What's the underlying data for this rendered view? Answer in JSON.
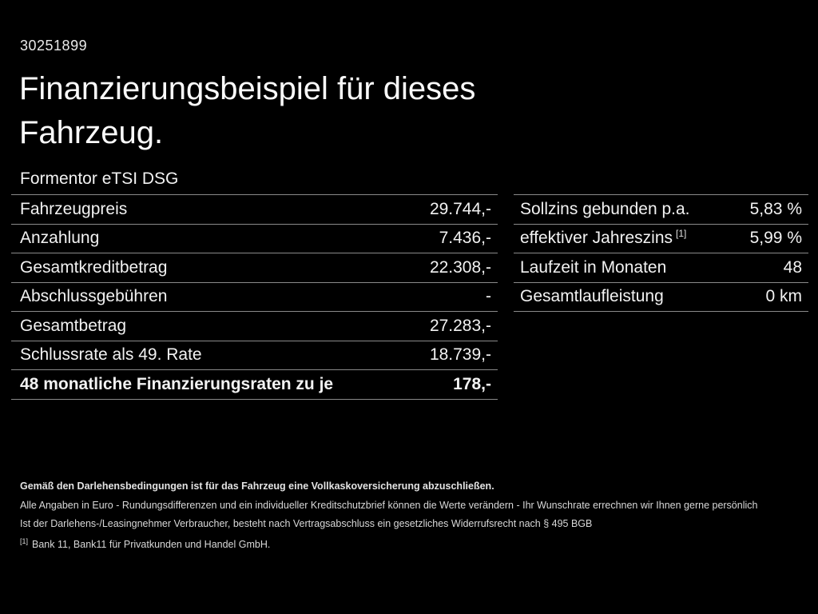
{
  "colors": {
    "background": "#000000",
    "text": "#f2f2f2",
    "divider": "#8a8a8a"
  },
  "header": {
    "id_number": "30251899",
    "title_line1": "Finanzierungsbeispiel für dieses",
    "title_line2": "Fahrzeug.",
    "model": "Formentor eTSI DSG"
  },
  "left_table": {
    "rows": [
      {
        "label": "Fahrzeugpreis",
        "value": "29.744,-"
      },
      {
        "label": "Anzahlung",
        "value": "7.436,-"
      },
      {
        "label": "Gesamtkreditbetrag",
        "value": "22.308,-"
      },
      {
        "label": "Abschlussgebühren",
        "value": "-"
      },
      {
        "label": "Gesamtbetrag",
        "value": "27.283,-"
      },
      {
        "label": "Schlussrate als 49. Rate",
        "value": "18.739,-"
      },
      {
        "label": "48 monatliche Finanzierungsraten zu je",
        "value": "178,-"
      }
    ]
  },
  "right_table": {
    "rows": [
      {
        "label": "Sollzins gebunden p.a.",
        "sup": "",
        "value": "5,83 %"
      },
      {
        "label": "effektiver Jahreszins",
        "sup": "[1]",
        "value": "5,99 %"
      },
      {
        "label": "Laufzeit in Monaten",
        "sup": "",
        "value": "48"
      },
      {
        "label": "Gesamtlaufleistung",
        "sup": "",
        "value": "0 km"
      }
    ]
  },
  "footer": {
    "line1_bold": "Gemäß den Darlehensbedingungen ist für das Fahrzeug eine Vollkaskoversicherung abzuschließen.",
    "line2": "Alle Angaben in Euro - Rundungsdifferenzen und ein individueller Kreditschutzbrief können die Werte verändern - Ihr Wunschrate errechnen wir Ihnen gerne persönlich",
    "line3": "Ist der Darlehens-/Leasingnehmer Verbraucher, besteht nach Vertragsabschluss ein gesetzliches Widerrufsrecht nach § 495 BGB",
    "footnote_marker": "[1]",
    "footnote_text": "Bank 11, Bank11 für Privatkunden und Handel GmbH."
  }
}
